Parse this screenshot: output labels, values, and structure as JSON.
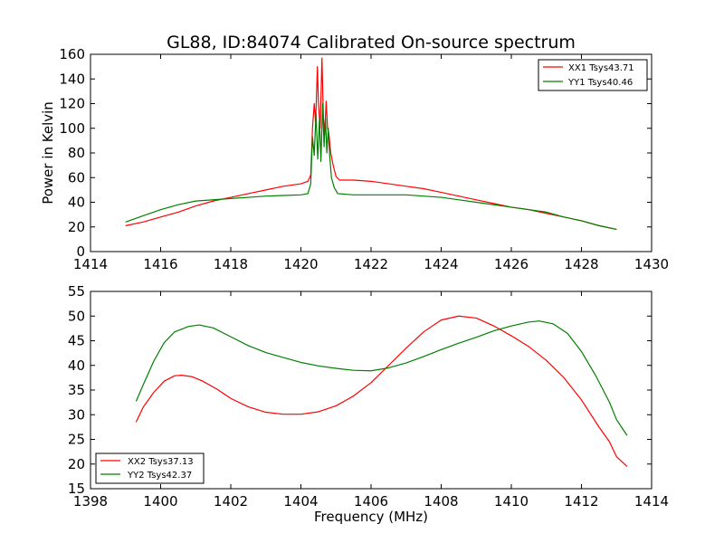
{
  "title": "GL88, ID:84074 Calibrated On-source spectrum",
  "colors": {
    "red": "#ff0000",
    "green": "#008000"
  },
  "chart_data": [
    {
      "type": "line",
      "xlabel": "",
      "ylabel": "Power in Kelvin",
      "xlim": [
        1414,
        1430
      ],
      "ylim": [
        0,
        160
      ],
      "xticks": [
        1414,
        1416,
        1418,
        1420,
        1422,
        1424,
        1426,
        1428,
        1430
      ],
      "yticks": [
        0,
        20,
        40,
        60,
        80,
        100,
        120,
        140,
        160
      ],
      "legend_position": "top-right",
      "series": [
        {
          "name": "XX1 Tsys43.71",
          "color": "#ff0000",
          "points": [
            [
              1415.0,
              21
            ],
            [
              1415.5,
              24
            ],
            [
              1416.0,
              28
            ],
            [
              1416.5,
              32
            ],
            [
              1417.0,
              37
            ],
            [
              1417.5,
              41
            ],
            [
              1418.0,
              44
            ],
            [
              1418.5,
              47
            ],
            [
              1419.0,
              50
            ],
            [
              1419.5,
              53
            ],
            [
              1420.0,
              55
            ],
            [
              1420.2,
              57
            ],
            [
              1420.28,
              62
            ],
            [
              1420.33,
              100
            ],
            [
              1420.38,
              120
            ],
            [
              1420.42,
              105
            ],
            [
              1420.47,
              150
            ],
            [
              1420.5,
              120
            ],
            [
              1420.55,
              100
            ],
            [
              1420.6,
              157
            ],
            [
              1420.64,
              110
            ],
            [
              1420.68,
              95
            ],
            [
              1420.72,
              122
            ],
            [
              1420.76,
              100
            ],
            [
              1420.8,
              95
            ],
            [
              1420.85,
              80
            ],
            [
              1420.92,
              70
            ],
            [
              1421.0,
              61
            ],
            [
              1421.1,
              58
            ],
            [
              1421.5,
              58
            ],
            [
              1422.0,
              57
            ],
            [
              1422.5,
              55
            ],
            [
              1423.0,
              53
            ],
            [
              1423.5,
              51
            ],
            [
              1424.0,
              48
            ],
            [
              1424.5,
              45
            ],
            [
              1425.0,
              42
            ],
            [
              1425.5,
              39
            ],
            [
              1426.0,
              36
            ],
            [
              1426.5,
              34
            ],
            [
              1427.0,
              31
            ],
            [
              1427.5,
              28
            ],
            [
              1428.0,
              25
            ],
            [
              1428.5,
              21
            ],
            [
              1429.0,
              18
            ]
          ]
        },
        {
          "name": "YY1 Tsys40.46",
          "color": "#008000",
          "points": [
            [
              1415.0,
              24
            ],
            [
              1415.5,
              29
            ],
            [
              1416.0,
              34
            ],
            [
              1416.5,
              38
            ],
            [
              1417.0,
              41
            ],
            [
              1417.5,
              42
            ],
            [
              1418.0,
              43
            ],
            [
              1418.5,
              44
            ],
            [
              1419.0,
              45
            ],
            [
              1419.5,
              45.5
            ],
            [
              1420.0,
              46
            ],
            [
              1420.2,
              47
            ],
            [
              1420.28,
              55
            ],
            [
              1420.33,
              93
            ],
            [
              1420.38,
              78
            ],
            [
              1420.43,
              112
            ],
            [
              1420.48,
              75
            ],
            [
              1420.53,
              108
            ],
            [
              1420.57,
              73
            ],
            [
              1420.62,
              120
            ],
            [
              1420.66,
              85
            ],
            [
              1420.7,
              108
            ],
            [
              1420.74,
              80
            ],
            [
              1420.78,
              100
            ],
            [
              1420.82,
              78
            ],
            [
              1420.87,
              60
            ],
            [
              1420.95,
              52
            ],
            [
              1421.05,
              47
            ],
            [
              1421.5,
              46
            ],
            [
              1422.0,
              46
            ],
            [
              1423.0,
              46
            ],
            [
              1424.0,
              44
            ],
            [
              1425.0,
              40
            ],
            [
              1426.0,
              36
            ],
            [
              1427.0,
              32
            ],
            [
              1427.5,
              28
            ],
            [
              1428.0,
              25
            ],
            [
              1428.5,
              21
            ],
            [
              1429.0,
              18
            ]
          ]
        }
      ]
    },
    {
      "type": "line",
      "xlabel": "Frequency (MHz)",
      "ylabel": "",
      "xlim": [
        1398,
        1414
      ],
      "ylim": [
        15,
        55
      ],
      "xticks": [
        1398,
        1400,
        1402,
        1404,
        1406,
        1408,
        1410,
        1412,
        1414
      ],
      "yticks": [
        15,
        20,
        25,
        30,
        35,
        40,
        45,
        50,
        55
      ],
      "legend_position": "bottom-left",
      "series": [
        {
          "name": "XX2 Tsys37.13",
          "color": "#ff0000",
          "points": [
            [
              1399.3,
              28.5
            ],
            [
              1399.5,
              31.5
            ],
            [
              1399.8,
              34.5
            ],
            [
              1400.1,
              36.8
            ],
            [
              1400.4,
              37.9
            ],
            [
              1400.6,
              38.0
            ],
            [
              1400.9,
              37.7
            ],
            [
              1401.2,
              36.8
            ],
            [
              1401.6,
              35.2
            ],
            [
              1402.0,
              33.3
            ],
            [
              1402.5,
              31.6
            ],
            [
              1403.0,
              30.5
            ],
            [
              1403.5,
              30.1
            ],
            [
              1404.0,
              30.1
            ],
            [
              1404.5,
              30.6
            ],
            [
              1405.0,
              31.8
            ],
            [
              1405.5,
              33.8
            ],
            [
              1406.0,
              36.5
            ],
            [
              1406.5,
              40.0
            ],
            [
              1407.0,
              43.5
            ],
            [
              1407.5,
              46.8
            ],
            [
              1408.0,
              49.2
            ],
            [
              1408.5,
              50.0
            ],
            [
              1409.0,
              49.6
            ],
            [
              1409.5,
              48.0
            ],
            [
              1410.0,
              46.0
            ],
            [
              1410.5,
              43.8
            ],
            [
              1411.0,
              41.0
            ],
            [
              1411.5,
              37.5
            ],
            [
              1412.0,
              33.0
            ],
            [
              1412.5,
              27.5
            ],
            [
              1412.8,
              24.5
            ],
            [
              1413.0,
              21.5
            ],
            [
              1413.3,
              19.5
            ]
          ]
        },
        {
          "name": "YY2 Tsys42.37",
          "color": "#008000",
          "points": [
            [
              1399.3,
              32.7
            ],
            [
              1399.5,
              36.0
            ],
            [
              1399.8,
              40.8
            ],
            [
              1400.1,
              44.6
            ],
            [
              1400.4,
              46.8
            ],
            [
              1400.8,
              47.9
            ],
            [
              1401.1,
              48.2
            ],
            [
              1401.5,
              47.6
            ],
            [
              1402.0,
              45.8
            ],
            [
              1402.5,
              44.0
            ],
            [
              1403.0,
              42.6
            ],
            [
              1403.5,
              41.6
            ],
            [
              1404.0,
              40.6
            ],
            [
              1404.5,
              39.9
            ],
            [
              1405.0,
              39.4
            ],
            [
              1405.5,
              39.0
            ],
            [
              1406.0,
              38.9
            ],
            [
              1406.5,
              39.5
            ],
            [
              1407.0,
              40.5
            ],
            [
              1407.5,
              41.8
            ],
            [
              1408.0,
              43.2
            ],
            [
              1408.5,
              44.5
            ],
            [
              1409.0,
              45.7
            ],
            [
              1409.5,
              47.0
            ],
            [
              1410.0,
              48.0
            ],
            [
              1410.5,
              48.8
            ],
            [
              1410.8,
              49.0
            ],
            [
              1411.2,
              48.4
            ],
            [
              1411.6,
              46.5
            ],
            [
              1412.0,
              42.8
            ],
            [
              1412.4,
              38.0
            ],
            [
              1412.8,
              32.5
            ],
            [
              1413.0,
              29.0
            ],
            [
              1413.3,
              25.8
            ]
          ]
        }
      ]
    }
  ]
}
